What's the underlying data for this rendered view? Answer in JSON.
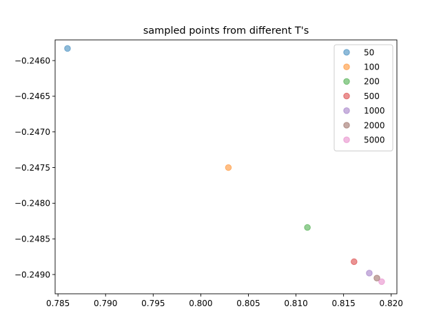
{
  "chart_data": {
    "type": "scatter",
    "title": "sampled points from different T's",
    "xlabel": "",
    "ylabel": "",
    "xlim": [
      0.7847,
      0.8206
    ],
    "ylim": [
      -0.24927,
      -0.24571
    ],
    "xticks": [
      0.785,
      0.79,
      0.795,
      0.8,
      0.805,
      0.81,
      0.815,
      0.82
    ],
    "xtick_labels": [
      "0.785",
      "0.790",
      "0.795",
      "0.800",
      "0.805",
      "0.810",
      "0.815",
      "0.820"
    ],
    "yticks": [
      -0.246,
      -0.2465,
      -0.247,
      -0.2475,
      -0.248,
      -0.2485,
      -0.249
    ],
    "ytick_labels": [
      "−0.2460",
      "−0.2465",
      "−0.2470",
      "−0.2475",
      "−0.2480",
      "−0.2485",
      "−0.2490"
    ],
    "grid": false,
    "legend_position": "top-right",
    "series": [
      {
        "name": "50",
        "color": "#1f77b4",
        "x": [
          0.786
        ],
        "y": [
          -0.24583
        ]
      },
      {
        "name": "100",
        "color": "#ff7f0e",
        "x": [
          0.8029
        ],
        "y": [
          -0.2475
        ]
      },
      {
        "name": "200",
        "color": "#2ca02c",
        "x": [
          0.8112
        ],
        "y": [
          -0.24834
        ]
      },
      {
        "name": "500",
        "color": "#d62728",
        "x": [
          0.8161
        ],
        "y": [
          -0.24882
        ]
      },
      {
        "name": "1000",
        "color": "#9467bd",
        "x": [
          0.8177
        ],
        "y": [
          -0.24898
        ]
      },
      {
        "name": "2000",
        "color": "#8c564b",
        "x": [
          0.8185
        ],
        "y": [
          -0.24905
        ]
      },
      {
        "name": "5000",
        "color": "#e377c2",
        "x": [
          0.819
        ],
        "y": [
          -0.2491
        ]
      }
    ]
  }
}
